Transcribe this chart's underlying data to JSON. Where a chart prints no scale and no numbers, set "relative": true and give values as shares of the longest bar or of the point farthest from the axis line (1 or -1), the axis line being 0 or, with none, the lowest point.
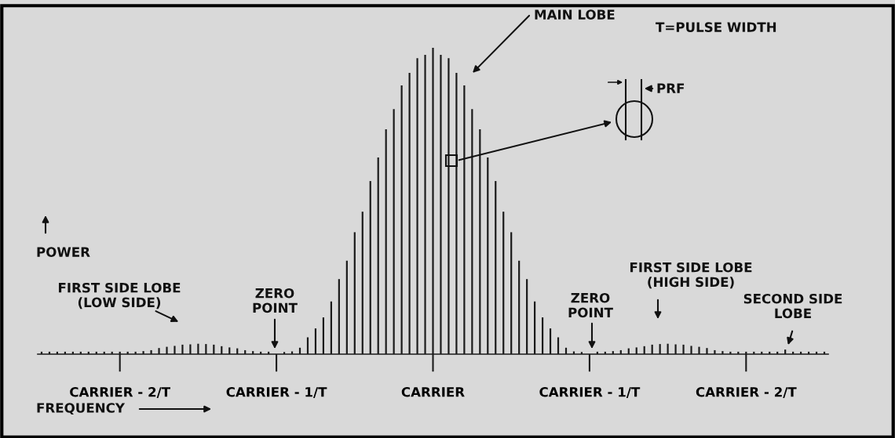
{
  "chart_data": {
    "type": "bar",
    "relative": true,
    "color": "#1a1a1a",
    "categories": [
      null,
      null,
      null,
      null,
      null,
      null,
      null,
      null,
      null,
      null,
      "CARRIER - 2/T",
      null,
      null,
      null,
      null,
      null,
      null,
      null,
      null,
      null,
      null,
      null,
      null,
      null,
      null,
      null,
      null,
      null,
      null,
      null,
      "CARRIER - 1/T",
      null,
      null,
      null,
      null,
      null,
      null,
      null,
      null,
      null,
      null,
      null,
      null,
      null,
      null,
      null,
      null,
      null,
      null,
      null,
      "CARRIER",
      null,
      null,
      null,
      null,
      null,
      null,
      null,
      null,
      null,
      null,
      null,
      null,
      null,
      null,
      null,
      null,
      null,
      null,
      null,
      "CARRIER - 1/T",
      null,
      null,
      null,
      null,
      null,
      null,
      null,
      null,
      null,
      null,
      null,
      null,
      null,
      null,
      null,
      null,
      null,
      null,
      null,
      "CARRIER - 2/T",
      null,
      null,
      null,
      null,
      null,
      null,
      null,
      null,
      null,
      null
    ],
    "values": [
      0.008,
      0.008,
      0.008,
      0.008,
      0.008,
      0.008,
      0.008,
      0.008,
      0.008,
      0.008,
      0.008,
      0.008,
      0.008,
      0.01,
      0.013,
      0.02,
      0.024,
      0.027,
      0.031,
      0.032,
      0.034,
      0.033,
      0.031,
      0.026,
      0.022,
      0.019,
      0.013,
      0.01,
      0.008,
      0.008,
      0,
      0.007,
      0.009,
      0.021,
      0.055,
      0.084,
      0.12,
      0.172,
      0.245,
      0.305,
      0.398,
      0.465,
      0.565,
      0.642,
      0.734,
      0.8,
      0.877,
      0.918,
      0.966,
      0.977,
      1,
      0.977,
      0.966,
      0.918,
      0.877,
      0.8,
      0.734,
      0.642,
      0.565,
      0.465,
      0.398,
      0.305,
      0.245,
      0.172,
      0.12,
      0.084,
      0.055,
      0.021,
      0.009,
      0.007,
      0,
      0.008,
      0.008,
      0.01,
      0.013,
      0.019,
      0.022,
      0.026,
      0.031,
      0.033,
      0.034,
      0.032,
      0.031,
      0.027,
      0.024,
      0.02,
      0.013,
      0.01,
      0.008,
      0.008,
      0.008,
      0.008,
      0.008,
      0.008,
      0.008,
      0.015,
      0.008,
      0.008,
      0.008,
      0.008,
      0.008
    ],
    "annotations": [
      "MAIN LOBE",
      "T=PULSE WIDTH",
      "PRF",
      "POWER",
      "FIRST SIDE LOBE\n(LOW SIDE)",
      "ZERO\nPOINT",
      "ZERO\nPOINT",
      "FIRST SIDE LOBE\n(HIGH SIDE)",
      "SECOND SIDE\nLOBE",
      "FREQUENCY"
    ],
    "grid": false,
    "legend": false
  }
}
